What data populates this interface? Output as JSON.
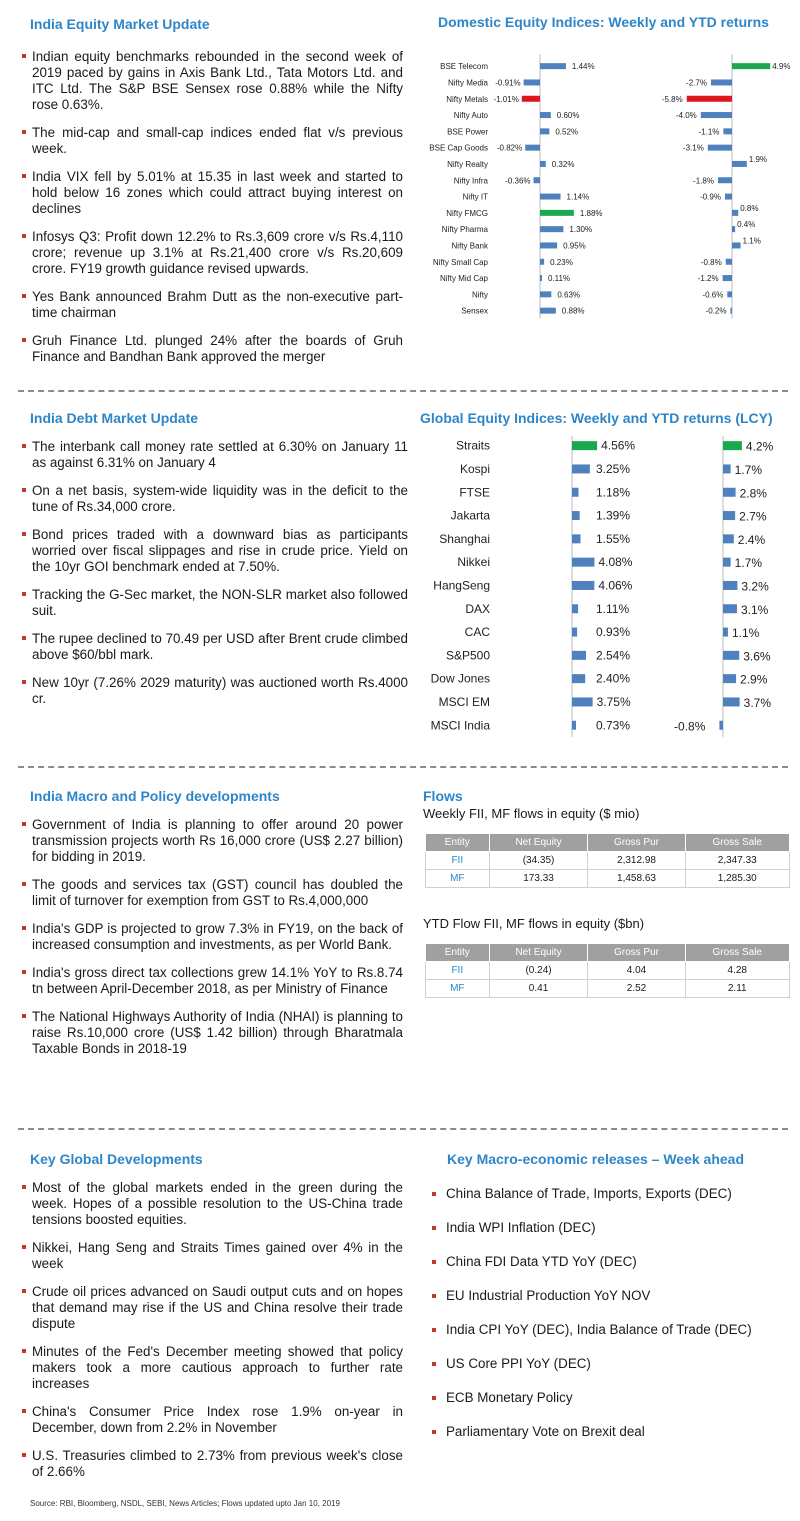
{
  "colors": {
    "accent": "#2e86c8",
    "bar": "#4e81bd",
    "positive_highlight": "#1aa84f",
    "negative_highlight": "#e0141e",
    "bullet": "#c0392b"
  },
  "equity": {
    "title": "India Equity Market Update",
    "bullets": [
      "Indian equity benchmarks rebounded in the second week of 2019 paced by gains in Axis Bank Ltd., Tata Motors Ltd. and ITC Ltd. The S&P BSE Sensex rose 0.88% while the Nifty rose 0.63%.",
      "The mid-cap and small-cap indices ended flat v/s previous week.",
      "India VIX fell by 5.01% at 15.35 in last week and started to hold below 16 zones which could attract buying interest on declines",
      "Infosys Q3: Profit down 12.2% to Rs.3,609 crore v/s Rs.4,110 crore; revenue up 3.1% at Rs.21,400 crore v/s Rs.20,609 crore. FY19 growth guidance revised upwards.",
      "Yes Bank announced Brahm Dutt as the non-executive part-time chairman",
      "Gruh Finance Ltd. plunged 24% after the boards of Gruh Finance and Bandhan Bank approved the merger"
    ]
  },
  "debt": {
    "title": "India Debt Market Update",
    "bullets": [
      "The interbank call money rate settled at 6.30% on January 11 as against 6.31% on January 4",
      "On a net basis, system-wide liquidity was in the deficit to the tune of Rs.34,000 crore.",
      "Bond prices traded with a downward bias as participants worried over fiscal slippages and rise in crude price. Yield on the 10yr GOI benchmark ended at 7.50%.",
      "Tracking the G-Sec market, the NON-SLR market also followed suit.",
      "The rupee declined to 70.49 per USD after Brent crude climbed above $60/bbl mark.",
      "New 10yr (7.26% 2029 maturity) was auctioned worth Rs.4000 cr."
    ]
  },
  "macro": {
    "title": "India Macro and Policy developments",
    "bullets": [
      "Government of India is planning to offer around 20 power transmission projects worth Rs 16,000 crore (US$ 2.27 billion) for bidding in 2019.",
      "The goods and services tax (GST) council has doubled the limit of turnover for exemption from GST to Rs.4,000,000",
      "India's GDP is projected to grow 7.3% in FY19, on the back of increased consumption and investments, as per World Bank.",
      "India's gross direct tax collections grew 14.1% YoY to Rs.8.74 tn between April-December 2018, as per Ministry of Finance",
      "The National Highways Authority of India (NHAI) is planning to raise Rs.10,000 crore (US$ 1.42 billion) through Bharatmala Taxable Bonds in 2018-19"
    ]
  },
  "global_dev": {
    "title": "Key Global Developments",
    "bullets": [
      "Most of the global markets ended in the green during the week. Hopes of a possible resolution to the US-China trade tensions boosted equities.",
      "Nikkei, Hang Seng and Straits Times gained over 4% in the week",
      "Crude oil prices advanced on Saudi output cuts and on hopes that demand may rise if the US and China resolve their trade dispute",
      "Minutes of the Fed's December meeting showed that policy makers took a more cautious approach to further rate increases",
      "China's Consumer Price Index rose 1.9% on-year in December, down from 2.2% in November",
      "U.S. Treasuries climbed to 2.73% from previous week's close of 2.66%"
    ]
  },
  "week_ahead": {
    "title": "Key Macro-economic releases – Week ahead",
    "items": [
      "China Balance of Trade, Imports, Exports (DEC)",
      "India WPI Inflation (DEC)",
      "China FDI Data YTD YoY (DEC)",
      "EU Industrial Production YoY NOV",
      "India CPI YoY (DEC), India Balance of Trade (DEC)",
      "US Core PPI YoY (DEC)",
      "ECB Monetary Policy",
      "Parliamentary Vote on Brexit deal"
    ]
  },
  "flows": {
    "title": "Flows",
    "weekly_caption": "Weekly FII, MF flows in equity ($ mio)",
    "ytd_caption": "YTD Flow FII, MF flows in equity ($bn)",
    "headers": [
      "Entity",
      "Net Equity",
      "Gross Pur",
      "Gross Sale"
    ],
    "weekly_rows": [
      [
        "FII",
        "(34.35)",
        "2,312.98",
        "2,347.33"
      ],
      [
        "MF",
        "173.33",
        "1,458.63",
        "1,285.30"
      ]
    ],
    "ytd_rows": [
      [
        "FII",
        "(0.24)",
        "4.04",
        "4.28"
      ],
      [
        "MF",
        "0.41",
        "2.52",
        "2.11"
      ]
    ]
  },
  "source": "Source: RBI, Bloomberg, NSDL, SEBI, News Articles; Flows updated upto Jan 10, 2019",
  "chart_data": [
    {
      "type": "bar",
      "title": "Domestic Equity Indices: Weekly and YTD returns",
      "categories": [
        "BSE Telecom",
        "Nifty Media",
        "Nifty Metals",
        "Nifty Auto",
        "BSE Power",
        "BSE Cap Goods",
        "Nifty Realty",
        "Nifty Infra",
        "Nifty IT",
        "Nifty FMCG",
        "Nifty Pharma",
        "Nifty Bank",
        "Nifty Small Cap",
        "Nifty Mid Cap",
        "Nifty",
        "Sensex"
      ],
      "series": [
        {
          "values": [
            1.44,
            -0.91,
            -1.01,
            0.6,
            0.52,
            -0.82,
            0.32,
            -0.36,
            1.14,
            1.88,
            1.3,
            0.95,
            0.23,
            0.11,
            0.63,
            0.88
          ],
          "labels": [
            "1.44%",
            "-0.91%",
            "-1.01%",
            "0.60%",
            "0.52%",
            "-0.82%",
            "0.32%",
            "-0.36%",
            "1.14%",
            "1.88%",
            "1.30%",
            "0.95%",
            "0.23%",
            "0.11%",
            "0.63%",
            "0.88%"
          ]
        },
        {
          "values": [
            4.9,
            -2.7,
            -5.8,
            -4.0,
            -1.1,
            -3.1,
            1.9,
            -1.8,
            -0.9,
            0.8,
            0.4,
            1.1,
            -0.8,
            -1.2,
            -0.6,
            -0.2
          ],
          "labels": [
            "4.9%",
            "-2.7%",
            "-5.8%",
            "-4.0%",
            "-1.1%",
            "-3.1%",
            "1.9%",
            "-1.8%",
            "-0.9%",
            "0.8%",
            "0.4%",
            "1.1%",
            "-0.8%",
            "-1.2%",
            "-0.6%",
            "-0.2%"
          ]
        }
      ]
    },
    {
      "type": "bar",
      "title": "Global Equity Indices: Weekly and YTD returns (LCY)",
      "categories": [
        "Straits",
        "Kospi",
        "FTSE",
        "Jakarta",
        "Shanghai",
        "Nikkei",
        "HangSeng",
        "DAX",
        "CAC",
        "S&P500",
        "Dow Jones",
        "MSCI EM",
        "MSCI India"
      ],
      "series": [
        {
          "values": [
            4.56,
            3.25,
            1.18,
            1.39,
            1.55,
            4.08,
            4.06,
            1.11,
            0.93,
            2.54,
            2.4,
            3.75,
            0.73
          ],
          "labels": [
            "4.56%",
            "3.25%",
            "1.18%",
            "1.39%",
            "1.55%",
            "4.08%",
            "4.06%",
            "1.11%",
            "0.93%",
            "2.54%",
            "2.40%",
            "3.75%",
            "0.73%"
          ]
        },
        {
          "values": [
            4.2,
            1.7,
            2.8,
            2.7,
            2.4,
            1.7,
            3.2,
            3.1,
            1.1,
            3.6,
            2.9,
            3.7,
            -0.8
          ],
          "labels": [
            "4.2%",
            "1.7%",
            "2.8%",
            "2.7%",
            "2.4%",
            "1.7%",
            "3.2%",
            "3.1%",
            "1.1%",
            "3.6%",
            "2.9%",
            "3.7%",
            "-0.8%"
          ]
        }
      ]
    }
  ]
}
